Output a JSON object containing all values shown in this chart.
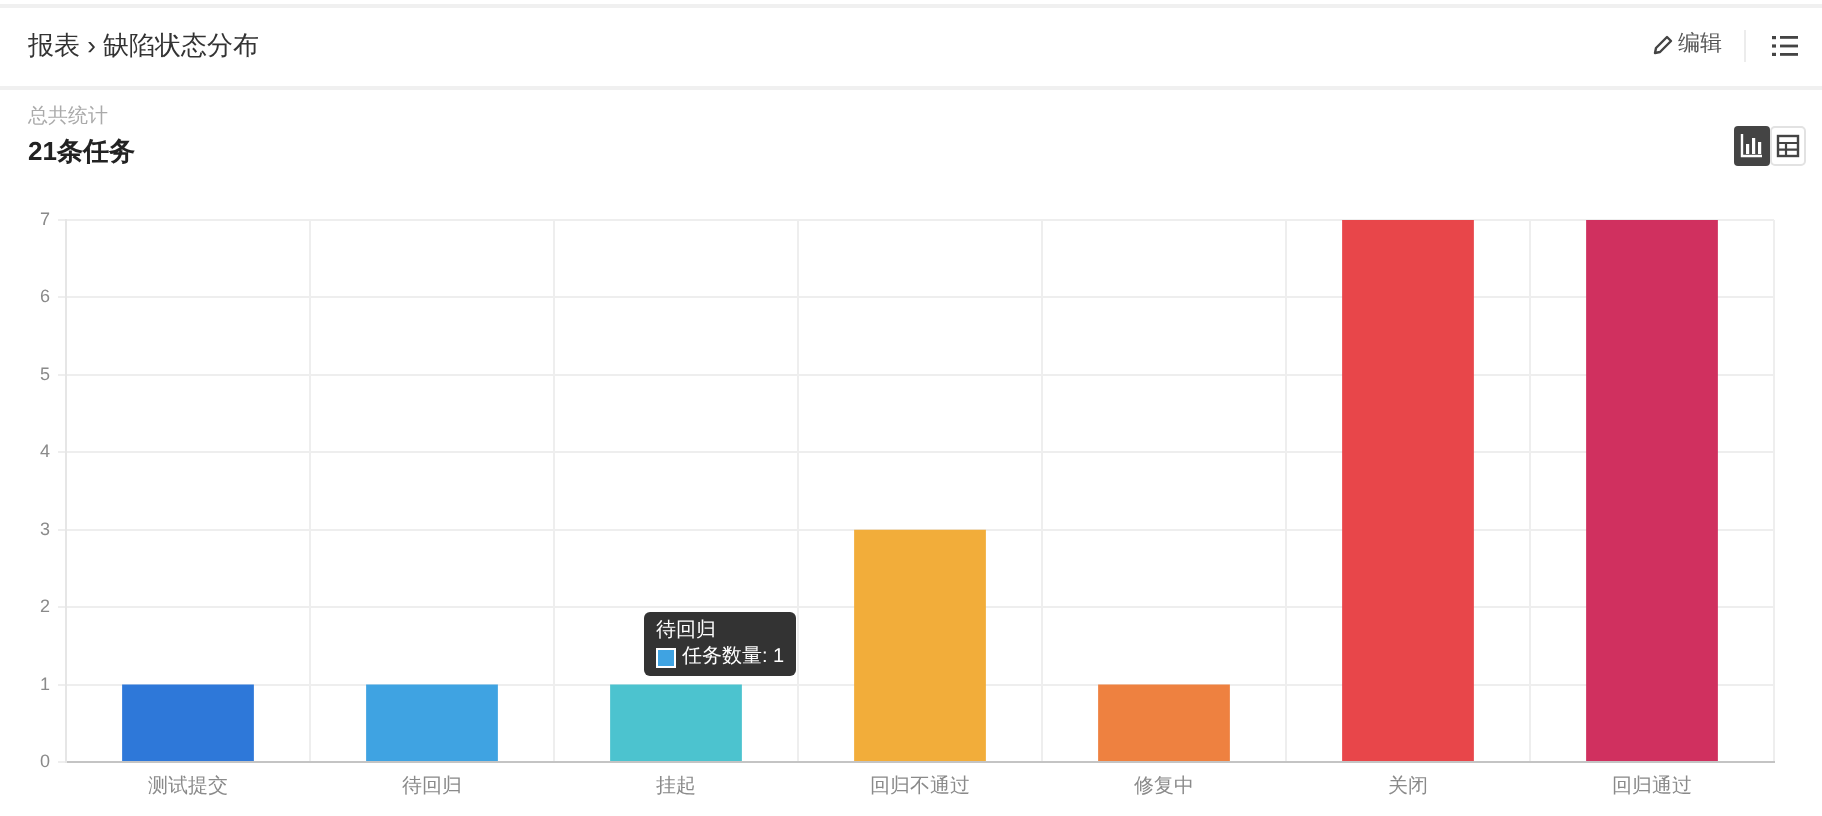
{
  "chart_data": {
    "type": "bar",
    "title": "报表 › 缺陷状态分布",
    "subtitle": "总共统计",
    "annotations": [
      "21条任务",
      "编辑",
      "待回归",
      "任务数量: 1"
    ],
    "categories": [
      "测试提交",
      "待回归",
      "挂起",
      "回归不通过",
      "修复中",
      "关闭",
      "回归通过"
    ],
    "values": [
      1,
      1,
      1,
      3,
      1,
      7,
      7
    ],
    "colors": [
      "#2e78d9",
      "#3fa3e2",
      "#4cc3cf",
      "#f2ad3a",
      "#ee8140",
      "#e8464a",
      "#d0305f"
    ],
    "ylim": [
      0,
      7
    ],
    "yticks": [
      0,
      1,
      2,
      3,
      4,
      5,
      6,
      7
    ],
    "grid": true
  }
}
